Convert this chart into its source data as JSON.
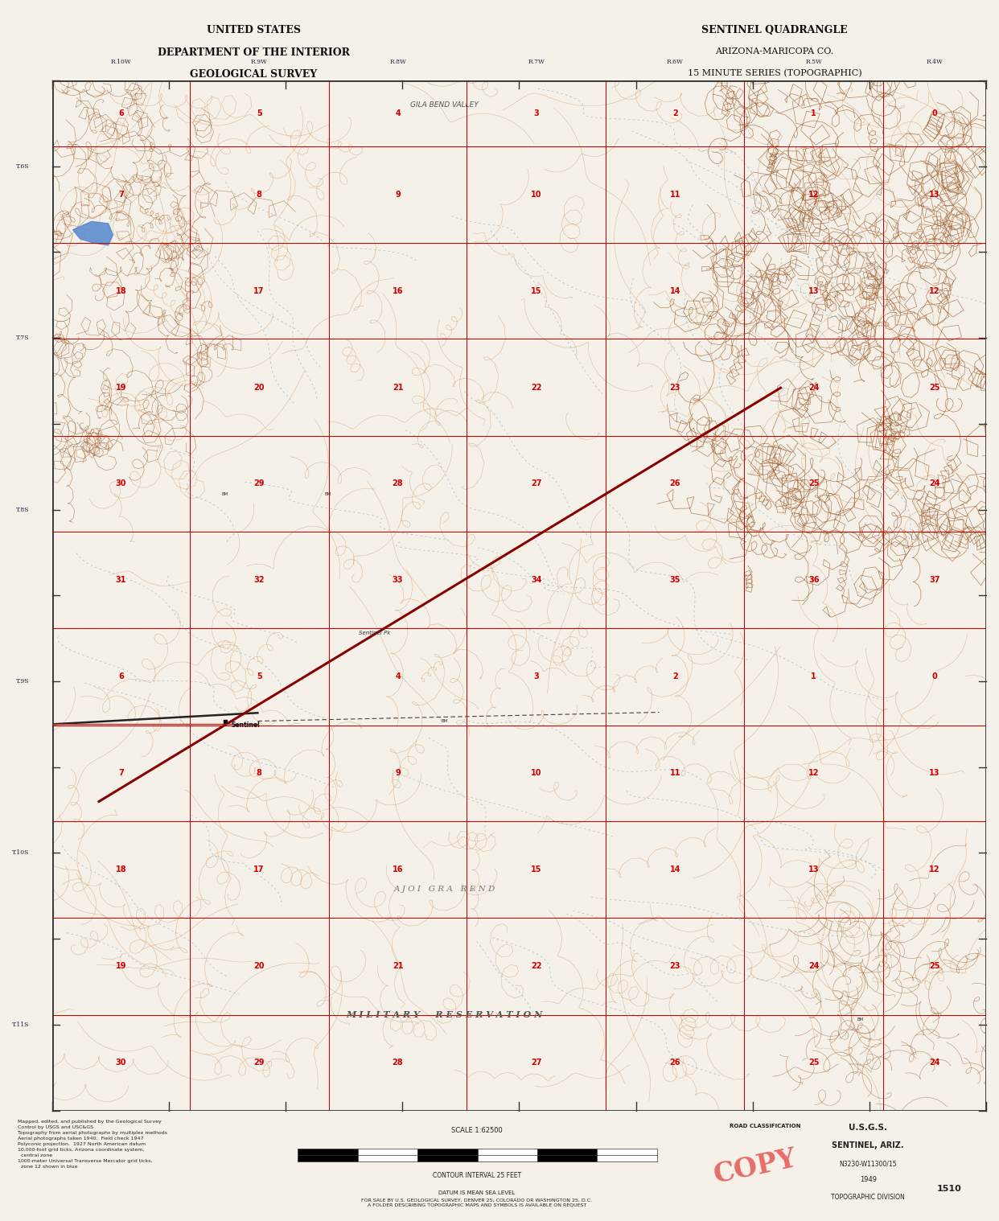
{
  "title_left_line1": "UNITED STATES",
  "title_left_line2": "DEPARTMENT OF THE INTERIOR",
  "title_left_line3": "GEOLOGICAL SURVEY",
  "title_right_line1": "SENTINEL QUADRANGLE",
  "title_right_line2": "ARIZONA-MARICOPA CO.",
  "title_right_line3": "15 MINUTE SERIES (TOPOGRAPHIC)",
  "bg_color": "#f5f0e8",
  "map_bg": "#f7f2e6",
  "grid_color_red": "#cc0000",
  "grid_color_black": "#222222",
  "contour_color": "#c8864a",
  "water_color": "#5588bb",
  "text_color_header": "#111111",
  "bottom_label_1": "CONTOUR INTERVAL 25 FEET",
  "bottom_label_2": "DATUM IS MEAN SEA LEVEL",
  "bottom_left_text": "Mapped, edited, and published by the Geological Survey\nControl by USGS and USC&GS\nTopography from aerial photographs by multiplex methods\nAerial photographs taken 1940.  Field check 1947\nPolyconic projection.  1927 North American datum\n10,000-foot grid ticks, Arizona coordinate system,\n  central zone\n1000-meter Universal Transverse Mercator grid ticks,\n  zone 12 shown in blue",
  "bottom_right_text_1": "U.S.G.S.",
  "bottom_right_text_2": "SENTINEL, ARIZ.",
  "bottom_right_text_3": "N3230-W11300/15",
  "bottom_right_text_4": "1949",
  "bottom_right_text_5": "TOPOGRAPHIC DIVISION",
  "sale_text": "FOR SALE BY U.S. GEOLOGICAL SURVEY, DENVER 25, COLORADO OR WASHINGTON 25, D.C.\nA FOLDER DESCRIBING TOPOGRAPHIC MAPS AND SYMBOLS IS AVAILABLE ON REQUEST",
  "copy_text": "COPY",
  "scale_text": "SCALE 1:62500",
  "military_text": "M I L I T A R Y     R E S E R V A T I O N",
  "ajoa_text": "A J O I   G R A   R E N D",
  "sentinel_label": "Sentinel",
  "map_border_color": "#333333",
  "year": "1949",
  "quadrangle_number": "1510",
  "road_class_text": "ROAD CLASSIFICATION",
  "gila_bend_text": "GILA BEND VALLEY"
}
